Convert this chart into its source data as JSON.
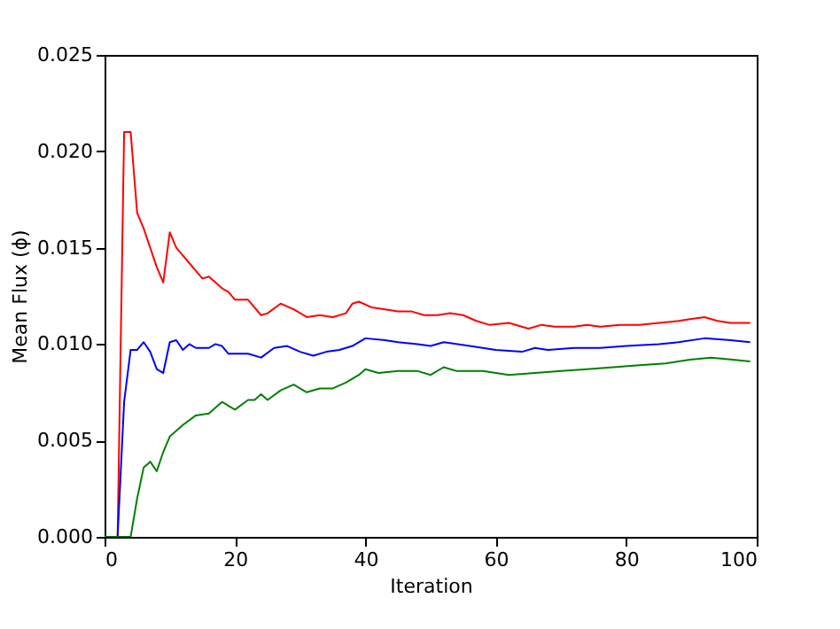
{
  "chart_data": {
    "type": "line",
    "xlabel": "Iteration",
    "ylabel": "Mean Flux (ϕ)",
    "xlim": [
      0,
      100
    ],
    "xticks": [
      0,
      20,
      40,
      60,
      80,
      100
    ],
    "ylim": [
      0,
      0.025
    ],
    "yticks": [
      {
        "value": 0,
        "label": "0.000"
      },
      {
        "value": 0.005,
        "label": "0.005"
      },
      {
        "value": 0.01,
        "label": "0.010"
      },
      {
        "value": 0.015,
        "label": "0.015"
      },
      {
        "value": 0.02,
        "label": "0.020"
      },
      {
        "value": 0.025,
        "label": "0.025"
      }
    ],
    "grid": false,
    "marker": "none",
    "line_style": "solid",
    "series": [
      {
        "color": "#ff0000",
        "x": [
          0,
          1,
          2,
          3,
          4,
          5,
          6,
          7,
          8,
          9,
          10,
          11,
          12,
          13,
          14,
          15,
          16,
          17,
          18,
          19,
          20,
          22,
          24,
          25,
          27,
          29,
          31,
          33,
          35,
          37,
          38,
          39,
          41,
          43,
          45,
          47,
          49,
          51,
          53,
          55,
          57,
          59,
          62,
          65,
          67,
          69,
          72,
          74,
          76,
          79,
          82,
          85,
          88,
          90,
          92,
          94,
          96,
          99
        ],
        "values": [
          0,
          0,
          0,
          0.021,
          0.021,
          0.0168,
          0.016,
          0.015,
          0.014,
          0.0132,
          0.0158,
          0.015,
          0.0146,
          0.0142,
          0.0138,
          0.0134,
          0.0135,
          0.0132,
          0.0129,
          0.0127,
          0.0123,
          0.0123,
          0.0115,
          0.0116,
          0.0121,
          0.0118,
          0.0114,
          0.0115,
          0.0114,
          0.0116,
          0.0121,
          0.0122,
          0.0119,
          0.0118,
          0.0117,
          0.0117,
          0.0115,
          0.0115,
          0.0116,
          0.0115,
          0.0112,
          0.011,
          0.0111,
          0.0108,
          0.011,
          0.0109,
          0.0109,
          0.011,
          0.0109,
          0.011,
          0.011,
          0.0111,
          0.0112,
          0.0113,
          0.0114,
          0.0112,
          0.0111,
          0.0111
        ]
      },
      {
        "color": "#0000ff",
        "x": [
          0,
          1,
          2,
          3,
          4,
          5,
          6,
          7,
          8,
          9,
          10,
          11,
          12,
          13,
          14,
          16,
          17,
          18,
          19,
          22,
          24,
          26,
          28,
          30,
          32,
          34,
          36,
          38,
          40,
          43,
          45,
          48,
          50,
          52,
          56,
          60,
          64,
          66,
          68,
          72,
          76,
          80,
          85,
          88,
          92,
          96,
          99
        ],
        "values": [
          0,
          0,
          0,
          0.007,
          0.0097,
          0.0097,
          0.0101,
          0.0096,
          0.0087,
          0.0085,
          0.0101,
          0.0102,
          0.0097,
          0.01,
          0.0098,
          0.0098,
          0.01,
          0.0099,
          0.0095,
          0.0095,
          0.0093,
          0.0098,
          0.0099,
          0.0096,
          0.0094,
          0.0096,
          0.0097,
          0.0099,
          0.0103,
          0.0102,
          0.0101,
          0.01,
          0.0099,
          0.0101,
          0.0099,
          0.0097,
          0.0096,
          0.0098,
          0.0097,
          0.0098,
          0.0098,
          0.0099,
          0.01,
          0.0101,
          0.0103,
          0.0102,
          0.0101
        ]
      },
      {
        "color": "#008000",
        "x": [
          0,
          1,
          2,
          3,
          4,
          5,
          6,
          7,
          8,
          9,
          10,
          12,
          14,
          16,
          18,
          19,
          20,
          22,
          23,
          24,
          25,
          27,
          29,
          31,
          33,
          35,
          37,
          39,
          40,
          42,
          45,
          48,
          50,
          52,
          54,
          58,
          62,
          66,
          70,
          74,
          78,
          82,
          86,
          90,
          93,
          96,
          99
        ],
        "values": [
          0,
          0,
          0,
          0,
          0,
          0.002,
          0.0036,
          0.0039,
          0.0034,
          0.0044,
          0.0052,
          0.0058,
          0.0063,
          0.0064,
          0.007,
          0.0068,
          0.0066,
          0.0071,
          0.0071,
          0.0074,
          0.0071,
          0.0076,
          0.0079,
          0.0075,
          0.0077,
          0.0077,
          0.008,
          0.0084,
          0.0087,
          0.0085,
          0.0086,
          0.0086,
          0.0084,
          0.0088,
          0.0086,
          0.0086,
          0.0084,
          0.0085,
          0.0086,
          0.0087,
          0.0088,
          0.0089,
          0.009,
          0.0092,
          0.0093,
          0.0092,
          0.0091
        ]
      }
    ]
  }
}
